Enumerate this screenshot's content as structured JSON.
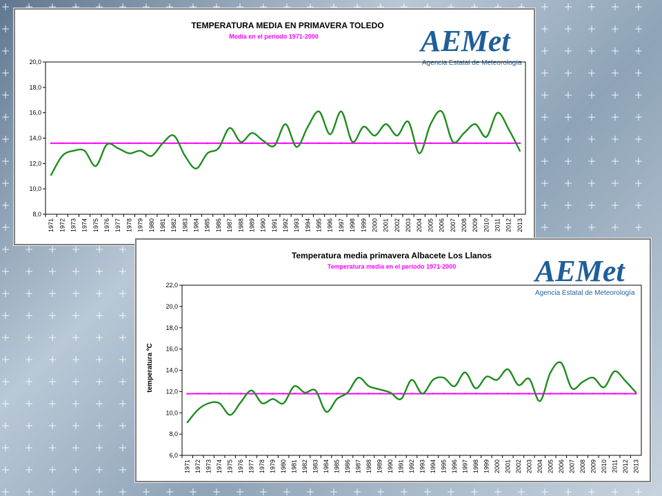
{
  "logo": {
    "brand": "AEMet",
    "subtitle": "Agencia Estatal de Meteorología"
  },
  "colors": {
    "series": "#1e8c1e",
    "reference": "#ff00ff",
    "logo_blue": "#1f5f99",
    "logo_orange": "#f29100"
  },
  "chart_data": [
    {
      "type": "line",
      "title": "TEMPERATURA MEDIA EN PRIMAVERA TOLEDO",
      "subtitle": "Media en el periodo 1971-2000",
      "xlabel": "",
      "ylabel": "",
      "ylim": [
        8.0,
        20.0
      ],
      "yticks": [
        "8,0",
        "10,0",
        "12,0",
        "14,0",
        "16,0",
        "18,0",
        "20,0"
      ],
      "grid": false,
      "categories": [
        "1971",
        "1972",
        "1973",
        "1974",
        "1975",
        "1976",
        "1977",
        "1978",
        "1979",
        "1980",
        "1981",
        "1982",
        "1983",
        "1984",
        "1985",
        "1986",
        "1987",
        "1988",
        "1989",
        "1990",
        "1991",
        "1992",
        "1993",
        "1994",
        "1995",
        "1996",
        "1997",
        "1998",
        "1999",
        "2000",
        "2001",
        "2002",
        "2003",
        "2004",
        "2005",
        "2006",
        "2007",
        "2008",
        "2009",
        "2010",
        "2011",
        "2012",
        "2013"
      ],
      "series": [
        {
          "values": [
            11.1,
            12.6,
            13.0,
            13.0,
            11.8,
            13.5,
            13.2,
            12.8,
            13.0,
            12.6,
            13.6,
            14.2,
            12.6,
            11.6,
            12.8,
            13.2,
            14.8,
            13.7,
            14.4,
            13.8,
            13.4,
            15.1,
            13.3,
            14.9,
            16.1,
            14.3,
            16.1,
            13.7,
            14.9,
            14.2,
            15.1,
            14.2,
            15.3,
            12.8,
            15.1,
            16.1,
            13.7,
            14.4,
            15.1,
            14.1,
            16.0,
            14.7,
            13.0
          ]
        },
        {
          "values": [
            13.6,
            13.6,
            13.6,
            13.6,
            13.6,
            13.6,
            13.6,
            13.6,
            13.6,
            13.6,
            13.6,
            13.6,
            13.6,
            13.6,
            13.6,
            13.6,
            13.6,
            13.6,
            13.6,
            13.6,
            13.6,
            13.6,
            13.6,
            13.6,
            13.6,
            13.6,
            13.6,
            13.6,
            13.6,
            13.6,
            13.6,
            13.6,
            13.6,
            13.6,
            13.6,
            13.6,
            13.6,
            13.6,
            13.6,
            13.6,
            13.6,
            13.6,
            13.6
          ]
        }
      ]
    },
    {
      "type": "line",
      "title": "Temperatura media primavera Albacete Los Llanos",
      "subtitle": "Temperatura media en el periodo 1971-2000",
      "xlabel": "",
      "ylabel": "temperatura ºC",
      "ylim": [
        6.0,
        22.0
      ],
      "yticks": [
        "6,0",
        "8,0",
        "10,0",
        "12,0",
        "14,0",
        "16,0",
        "18,0",
        "20,0",
        "22,0"
      ],
      "grid": false,
      "categories": [
        "1971",
        "1972",
        "1973",
        "1974",
        "1975",
        "1976",
        "1977",
        "1978",
        "1979",
        "1980",
        "1981",
        "1982",
        "1983",
        "1984",
        "1985",
        "1986",
        "1987",
        "1988",
        "1989",
        "1990",
        "1991",
        "1992",
        "1993",
        "1994",
        "1995",
        "1996",
        "1997",
        "1998",
        "1999",
        "2000",
        "2001",
        "2002",
        "2003",
        "2004",
        "2005",
        "2006",
        "2007",
        "2008",
        "2009",
        "2010",
        "2011",
        "2012",
        "2013"
      ],
      "series": [
        {
          "values": [
            9.1,
            10.3,
            10.9,
            10.9,
            9.8,
            11.0,
            12.1,
            10.9,
            11.3,
            10.9,
            12.5,
            11.9,
            12.1,
            10.1,
            11.3,
            11.9,
            13.3,
            12.5,
            12.2,
            11.9,
            11.3,
            13.1,
            11.8,
            13.1,
            13.3,
            12.5,
            13.8,
            12.3,
            13.4,
            13.1,
            14.1,
            12.6,
            13.2,
            11.1,
            13.8,
            14.7,
            12.3,
            12.9,
            13.3,
            12.4,
            13.9,
            13.0,
            11.9
          ]
        },
        {
          "values": [
            11.8,
            11.8,
            11.8,
            11.8,
            11.8,
            11.8,
            11.8,
            11.8,
            11.8,
            11.8,
            11.8,
            11.8,
            11.8,
            11.8,
            11.8,
            11.8,
            11.8,
            11.8,
            11.8,
            11.8,
            11.8,
            11.8,
            11.8,
            11.8,
            11.8,
            11.8,
            11.8,
            11.8,
            11.8,
            11.8,
            11.8,
            11.8,
            11.8,
            11.8,
            11.8,
            11.8,
            11.8,
            11.8,
            11.8,
            11.8,
            11.8,
            11.8,
            11.8
          ]
        }
      ]
    }
  ]
}
